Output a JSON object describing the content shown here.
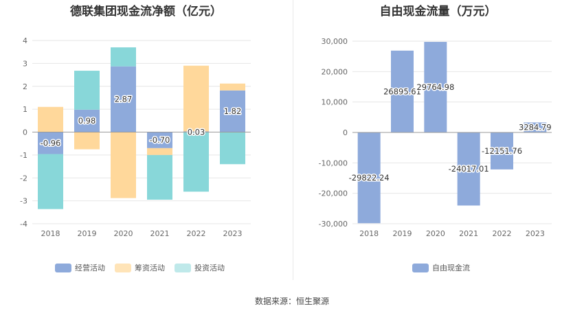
{
  "chart_data": [
    {
      "type": "bar",
      "stacked": true,
      "title": "德联集团现金流净额（亿元）",
      "categories": [
        "2018",
        "2019",
        "2020",
        "2021",
        "2022",
        "2023"
      ],
      "ylim": [
        -4,
        4
      ],
      "yticks": [
        "4",
        "3",
        "2",
        "1",
        "0",
        "-1",
        "-2",
        "-3",
        "-4"
      ],
      "grid": true,
      "legend_position": "bottom",
      "series": [
        {
          "name": "经营活动",
          "color": "#8eaadb",
          "values": [
            -0.96,
            0.98,
            2.87,
            -0.7,
            0.03,
            1.82
          ]
        },
        {
          "name": "筹资活动",
          "color": "#ffd89b",
          "values": [
            1.1,
            -0.75,
            -2.88,
            -0.3,
            2.87,
            0.3
          ]
        },
        {
          "name": "投资活动",
          "color": "#88d7d9",
          "values": [
            -2.4,
            1.7,
            0.83,
            -1.95,
            -2.6,
            -1.4
          ]
        }
      ],
      "data_labels": [
        "-0.96",
        "0.98",
        "2.87",
        "-0.70",
        "0.03",
        "1.82"
      ]
    },
    {
      "type": "bar",
      "title": "自由现金流量（万元）",
      "categories": [
        "2018",
        "2019",
        "2020",
        "2021",
        "2022",
        "2023"
      ],
      "ylim": [
        -30000,
        30000
      ],
      "yticks": [
        "30,000",
        "20,000",
        "10,000",
        "0",
        "-10,000",
        "-20,000",
        "-30,000"
      ],
      "grid": true,
      "legend_position": "bottom",
      "series": [
        {
          "name": "自由现金流",
          "color": "#8eaadb",
          "values": [
            -29822.24,
            26895.61,
            29764.98,
            -24017.01,
            -12151.76,
            3284.79
          ]
        }
      ],
      "data_labels": [
        "-29822.24",
        "26895.61",
        "29764.98",
        "-24017.01",
        "-12151.76",
        "3284.79"
      ]
    }
  ],
  "source_text": "数据来源：恒生聚源"
}
